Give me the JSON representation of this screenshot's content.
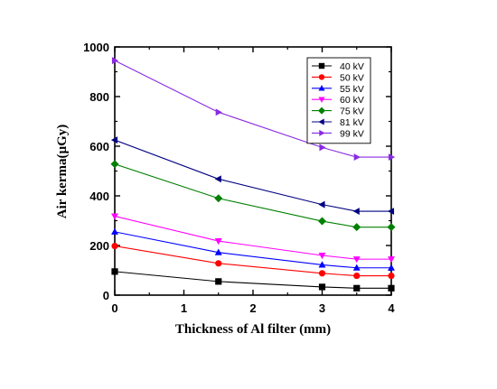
{
  "chart_data": {
    "type": "line",
    "xlabel": "Thickness of Al filter (mm)",
    "ylabel": "Air  kerma(µGy)",
    "xlim": [
      0,
      4
    ],
    "ylim": [
      0,
      1000
    ],
    "x_ticks": [
      "0",
      "1",
      "2",
      "3",
      "4"
    ],
    "y_ticks": [
      "0",
      "200",
      "400",
      "600",
      "800",
      "1000"
    ],
    "x": [
      0,
      1.5,
      3,
      3.5,
      4
    ],
    "grid": false,
    "legend_position": "top-right",
    "series": [
      {
        "name": "40 kV",
        "color": "#000000",
        "marker": "square",
        "values": [
          95,
          55,
          33,
          28,
          28
        ]
      },
      {
        "name": "50 kV",
        "color": "#ff0000",
        "marker": "circle",
        "values": [
          198,
          128,
          88,
          78,
          78
        ]
      },
      {
        "name": "55 kV",
        "color": "#0000ff",
        "marker": "triangle-up",
        "values": [
          255,
          172,
          122,
          110,
          110
        ]
      },
      {
        "name": "60 kV",
        "color": "#ff00ff",
        "marker": "triangle-down",
        "values": [
          318,
          218,
          160,
          145,
          145
        ]
      },
      {
        "name": "75 kV",
        "color": "#008000",
        "marker": "diamond",
        "values": [
          528,
          390,
          298,
          274,
          274
        ]
      },
      {
        "name": "81 kV",
        "color": "#000080",
        "marker": "triangle-left",
        "values": [
          625,
          468,
          365,
          338,
          338
        ]
      },
      {
        "name": "99 kV",
        "color": "#8a2be2",
        "marker": "triangle-right",
        "values": [
          945,
          737,
          595,
          556,
          556
        ]
      }
    ]
  }
}
